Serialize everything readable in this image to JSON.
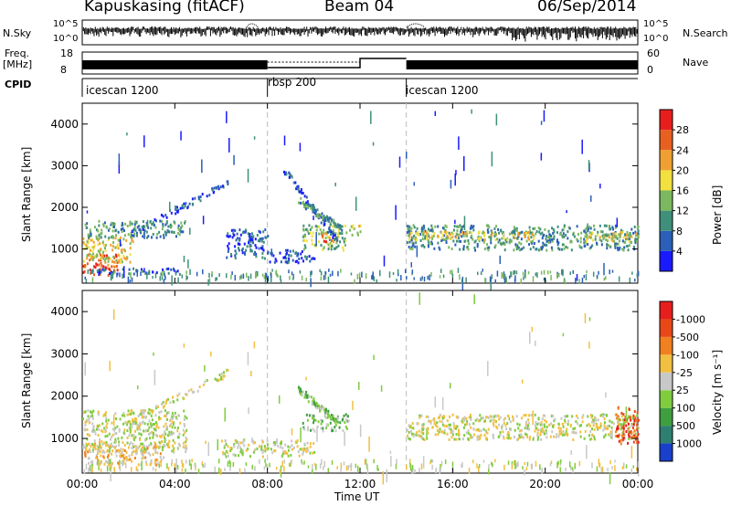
{
  "header": {
    "station": "Kapuskasing (fitACF)",
    "beam": "Beam 04",
    "date": "06/Sep/2014"
  },
  "noise_panel": {
    "left_label": "N.Sky",
    "right_label": "N.Search",
    "left_ticks": [
      "10^5",
      "10^0"
    ],
    "right_ticks": [
      "10^5",
      "10^0"
    ]
  },
  "freq_panel": {
    "left_label_line1": "Freq.",
    "left_label_line2": "[MHz]",
    "left_ticks": [
      "18",
      "8"
    ],
    "right_label": "Nave",
    "right_ticks": [
      "60",
      "0"
    ]
  },
  "cpid_panel": {
    "label": "CPID",
    "segments": [
      {
        "name": "icescan 1200",
        "start_hour": 0,
        "end_hour": 8
      },
      {
        "name": "rbsp 200",
        "start_hour": 8,
        "end_hour": 14
      },
      {
        "name": "icescan 1200",
        "start_hour": 14,
        "end_hour": 24
      }
    ]
  },
  "x_axis": {
    "label": "Time UT",
    "ticks": [
      "00:00",
      "04:00",
      "08:00",
      "12:00",
      "16:00",
      "20:00",
      "00:00"
    ]
  },
  "chart_data": [
    {
      "type": "heatmap",
      "title": "Power",
      "ylabel": "Slant Range [km]",
      "xlabel": "",
      "x_range_hours": [
        0,
        24
      ],
      "ylim": [
        180,
        4500
      ],
      "yticks": [
        1000,
        2000,
        3000,
        4000
      ],
      "colorbar": {
        "label": "Power [dB]",
        "tick_labels": [
          "4",
          "8",
          "12",
          "16",
          "20",
          "24",
          "28"
        ],
        "colors": [
          "#1a1aff",
          "#2b5fb8",
          "#3f8f7a",
          "#7cb85f",
          "#f2e040",
          "#f0a030",
          "#e86020",
          "#e81e1e"
        ]
      },
      "regions": [
        {
          "t0": 0,
          "t1": 1.5,
          "r0": 400,
          "r1": 900,
          "level": 6
        },
        {
          "t0": 0,
          "t1": 2.2,
          "r0": 700,
          "r1": 1300,
          "level": 4
        },
        {
          "t0": 0,
          "t1": 4.5,
          "r0": 1300,
          "r1": 1700,
          "level": 2
        },
        {
          "t0": 0.3,
          "t1": 4.3,
          "r0": 420,
          "r1": 560,
          "level": 1
        },
        {
          "t0": 6.2,
          "t1": 8.0,
          "r0": 800,
          "r1": 1500,
          "level": 1
        },
        {
          "t0": 8.0,
          "t1": 10.0,
          "r0": 700,
          "r1": 1000,
          "level": 1
        },
        {
          "t0": 9.5,
          "t1": 11.4,
          "r0": 1000,
          "r1": 1600,
          "level": 3
        },
        {
          "t0": 10.3,
          "t1": 11.0,
          "r0": 1200,
          "r1": 1400,
          "level": 6
        },
        {
          "t0": 11.5,
          "t1": 12.0,
          "r0": 1300,
          "r1": 1600,
          "level": 4
        },
        {
          "t0": 14.0,
          "t1": 24.0,
          "r0": 1000,
          "r1": 1600,
          "level": 2
        },
        {
          "t0": 14.0,
          "t1": 19.5,
          "r0": 1250,
          "r1": 1450,
          "level": 4
        },
        {
          "t0": 21.5,
          "t1": 24.0,
          "r0": 1200,
          "r1": 1450,
          "level": 4
        }
      ],
      "streaks": [
        {
          "t0": 2.0,
          "t1": 6.3,
          "r0": 1400,
          "r1": 2600,
          "level": 1
        },
        {
          "t0": 8.6,
          "t1": 11.0,
          "r0": 3000,
          "r1": 1200,
          "level": 1
        },
        {
          "t0": 9.3,
          "t1": 11.2,
          "r0": 2200,
          "r1": 1500,
          "level": 2
        }
      ]
    },
    {
      "type": "heatmap",
      "title": "Velocity",
      "ylabel": "Slant Range [km]",
      "xlabel": "Time UT",
      "x_range_hours": [
        0,
        24
      ],
      "ylim": [
        180,
        4500
      ],
      "yticks": [
        1000,
        2000,
        3000,
        4000
      ],
      "colorbar": {
        "label": "Velocity [m s⁻¹]",
        "tick_labels": [
          "1000",
          "500",
          "100",
          "25",
          "-25",
          "-100",
          "-500",
          "-1000"
        ],
        "colors": [
          "#1a3fcc",
          "#2f7f70",
          "#3f9f3f",
          "#7fcc3f",
          "#c8c8c8",
          "#f2c040",
          "#f08020",
          "#e84818",
          "#e81e1e"
        ]
      },
      "regions": [
        {
          "t0": 0,
          "t1": 3.5,
          "r0": 400,
          "r1": 900,
          "level": 5
        },
        {
          "t0": 0,
          "t1": 4.5,
          "r0": 700,
          "r1": 1700,
          "level": 4
        },
        {
          "t0": 6.0,
          "t1": 10.0,
          "r0": 600,
          "r1": 1000,
          "level": 4
        },
        {
          "t0": 9.5,
          "t1": 11.5,
          "r0": 1200,
          "r1": 1600,
          "level": 3
        },
        {
          "t0": 14.0,
          "t1": 24.0,
          "r0": 1000,
          "r1": 1600,
          "level": 4
        },
        {
          "t0": 23.0,
          "t1": 24.0,
          "r0": 900,
          "r1": 1800,
          "level": 7
        }
      ],
      "streaks": [
        {
          "t0": 2.0,
          "t1": 6.3,
          "r0": 1400,
          "r1": 2600,
          "level": 4
        },
        {
          "t0": 9.3,
          "t1": 11.0,
          "r0": 2200,
          "r1": 1400,
          "level": 3
        }
      ]
    }
  ]
}
